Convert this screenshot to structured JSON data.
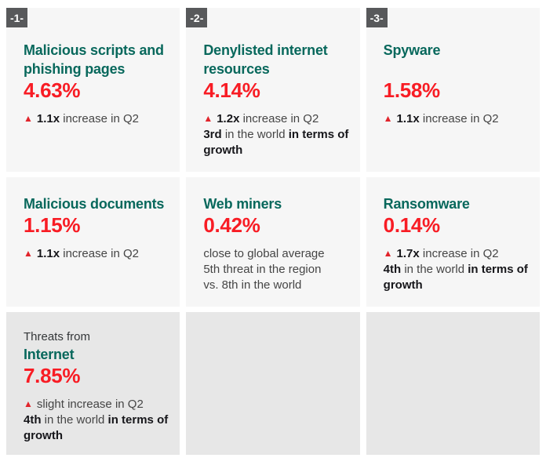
{
  "colors": {
    "card_bg": "#f6f6f6",
    "card_bg_muted": "#e7e7e7",
    "badge_bg": "#58595b",
    "badge_text": "#ffffff",
    "title_green": "#08685c",
    "percent_red": "#f81c24",
    "triangle_red": "#e1242b",
    "text_bold": "#16161a",
    "text_regular": "#454545"
  },
  "icons": {
    "increase_triangle": "▲"
  },
  "cards": [
    {
      "badge": "-1-",
      "title": "Malicious scripts and phishing pages",
      "percent": "4.63%",
      "notes": [
        {
          "icon": "up-triangle",
          "segments": [
            {
              "text": "1.1x",
              "bold": true
            },
            {
              "text": " increase in Q2",
              "bold": false
            }
          ]
        }
      ]
    },
    {
      "badge": "-2-",
      "title": "Denylisted internet resources",
      "percent": "4.14%",
      "notes": [
        {
          "icon": "up-triangle",
          "segments": [
            {
              "text": "1.2x",
              "bold": true
            },
            {
              "text": " increase in Q2",
              "bold": false
            }
          ]
        },
        {
          "segments": [
            {
              "text": "3rd",
              "bold": true
            },
            {
              "text": " in the world ",
              "bold": false
            },
            {
              "text": "in terms of growth",
              "bold": true
            }
          ]
        }
      ]
    },
    {
      "badge": "-3-",
      "title": "Spyware",
      "percent": "1.58%",
      "notes": [
        {
          "icon": "up-triangle",
          "segments": [
            {
              "text": "1.1x",
              "bold": true
            },
            {
              "text": " increase in Q2",
              "bold": false
            }
          ]
        }
      ]
    },
    {
      "title": "Malicious documents",
      "percent": "1.15%",
      "notes": [
        {
          "icon": "up-triangle",
          "segments": [
            {
              "text": "1.1x",
              "bold": true
            },
            {
              "text": " increase in Q2",
              "bold": false
            }
          ]
        }
      ]
    },
    {
      "title": "Web miners",
      "percent": "0.42%",
      "notes": [
        {
          "segments": [
            {
              "text": "close to global average",
              "bold": false
            }
          ]
        },
        {
          "segments": [
            {
              "text": "5th threat in the region",
              "bold": false
            }
          ]
        },
        {
          "segments": [
            {
              "text": "vs. 8th in the world",
              "bold": false
            }
          ]
        }
      ]
    },
    {
      "title": "Ransomware",
      "percent": "0.14%",
      "notes": [
        {
          "icon": "up-triangle",
          "segments": [
            {
              "text": "1.7x",
              "bold": true
            },
            {
              "text": " increase in Q2",
              "bold": false
            }
          ]
        },
        {
          "segments": [
            {
              "text": "4th",
              "bold": true
            },
            {
              "text": " in the world ",
              "bold": false
            },
            {
              "text": "in terms of growth",
              "bold": true
            }
          ]
        }
      ]
    },
    {
      "pretitle": "Threats from",
      "title": "Internet",
      "percent": "7.85%",
      "notes": [
        {
          "icon": "up-triangle",
          "segments": [
            {
              "text": "slight increase in Q2",
              "bold": false
            }
          ]
        },
        {
          "segments": [
            {
              "text": "4th",
              "bold": true
            },
            {
              "text": " in the world ",
              "bold": false
            },
            {
              "text": "in terms of growth",
              "bold": true
            }
          ]
        }
      ]
    },
    {},
    {}
  ]
}
